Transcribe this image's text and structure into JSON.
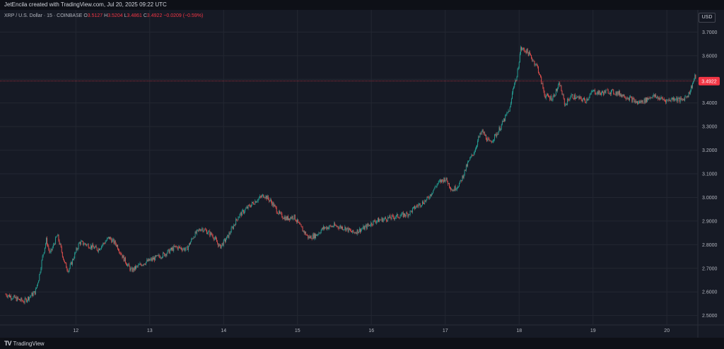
{
  "header": {
    "credit": "JetEncila created with TradingView.com, Jul 20, 2025 09:22 UTC",
    "symbol": "XRP / U.S. Dollar · 15 · COINBASE",
    "open_label": "O",
    "open_value": "3.5127",
    "high_label": "H",
    "high_value": "3.5204",
    "low_label": "L",
    "low_value": "3.4861",
    "close_label": "C",
    "close_value": "3.4922",
    "change": "−0.0209 (−0.59%)",
    "currency": "USD"
  },
  "footer": {
    "brand": "TradingView",
    "logo": "TV"
  },
  "colors": {
    "background": "#161a25",
    "up": "#26a69a",
    "down": "#ef5350",
    "price_line": "#f23645",
    "grid": "#232732"
  },
  "chart_data": {
    "type": "candlestick",
    "title": "XRP / U.S. Dollar · 15 · COINBASE",
    "interval": "15",
    "ylim": [
      2.46,
      3.74
    ],
    "xlim": [
      11.05,
      20.4
    ],
    "yticks": [
      "3.7000",
      "3.6000",
      "3.5000",
      "3.4000",
      "3.3000",
      "3.2000",
      "3.1000",
      "3.0000",
      "2.9000",
      "2.8000",
      "2.7000",
      "2.6000",
      "2.5000"
    ],
    "xticks": [
      "12",
      "13",
      "14",
      "15",
      "16",
      "17",
      "18",
      "19",
      "20"
    ],
    "last_price": "3.4922",
    "grid": true,
    "close_path": [
      [
        11.05,
        2.59
      ],
      [
        11.2,
        2.57
      ],
      [
        11.3,
        2.56
      ],
      [
        11.45,
        2.6
      ],
      [
        11.5,
        2.66
      ],
      [
        11.55,
        2.75
      ],
      [
        11.6,
        2.82
      ],
      [
        11.65,
        2.76
      ],
      [
        11.75,
        2.84
      ],
      [
        11.85,
        2.72
      ],
      [
        11.9,
        2.69
      ],
      [
        12.05,
        2.81
      ],
      [
        12.15,
        2.8
      ],
      [
        12.3,
        2.78
      ],
      [
        12.45,
        2.83
      ],
      [
        12.55,
        2.8
      ],
      [
        12.65,
        2.74
      ],
      [
        12.75,
        2.69
      ],
      [
        12.9,
        2.72
      ],
      [
        13.05,
        2.74
      ],
      [
        13.2,
        2.76
      ],
      [
        13.35,
        2.79
      ],
      [
        13.5,
        2.78
      ],
      [
        13.6,
        2.84
      ],
      [
        13.7,
        2.87
      ],
      [
        13.85,
        2.84
      ],
      [
        13.95,
        2.79
      ],
      [
        14.05,
        2.83
      ],
      [
        14.2,
        2.92
      ],
      [
        14.3,
        2.95
      ],
      [
        14.45,
        2.99
      ],
      [
        14.55,
        3.01
      ],
      [
        14.65,
        2.98
      ],
      [
        14.75,
        2.93
      ],
      [
        14.85,
        2.91
      ],
      [
        14.95,
        2.92
      ],
      [
        15.05,
        2.87
      ],
      [
        15.15,
        2.83
      ],
      [
        15.25,
        2.84
      ],
      [
        15.35,
        2.87
      ],
      [
        15.5,
        2.88
      ],
      [
        15.65,
        2.87
      ],
      [
        15.75,
        2.85
      ],
      [
        15.9,
        2.87
      ],
      [
        16.05,
        2.9
      ],
      [
        16.2,
        2.91
      ],
      [
        16.35,
        2.92
      ],
      [
        16.5,
        2.93
      ],
      [
        16.6,
        2.96
      ],
      [
        16.75,
        2.99
      ],
      [
        16.9,
        3.06
      ],
      [
        17.0,
        3.08
      ],
      [
        17.1,
        3.03
      ],
      [
        17.2,
        3.06
      ],
      [
        17.3,
        3.14
      ],
      [
        17.4,
        3.2
      ],
      [
        17.45,
        3.25
      ],
      [
        17.5,
        3.28
      ],
      [
        17.6,
        3.23
      ],
      [
        17.7,
        3.27
      ],
      [
        17.8,
        3.33
      ],
      [
        17.88,
        3.38
      ],
      [
        17.92,
        3.47
      ],
      [
        17.97,
        3.51
      ],
      [
        18.02,
        3.63
      ],
      [
        18.1,
        3.62
      ],
      [
        18.15,
        3.6
      ],
      [
        18.25,
        3.55
      ],
      [
        18.35,
        3.43
      ],
      [
        18.45,
        3.42
      ],
      [
        18.55,
        3.48
      ],
      [
        18.62,
        3.39
      ],
      [
        18.7,
        3.43
      ],
      [
        18.8,
        3.42
      ],
      [
        18.9,
        3.41
      ],
      [
        19.0,
        3.45
      ],
      [
        19.1,
        3.44
      ],
      [
        19.2,
        3.45
      ],
      [
        19.35,
        3.44
      ],
      [
        19.5,
        3.42
      ],
      [
        19.6,
        3.4
      ],
      [
        19.7,
        3.41
      ],
      [
        19.8,
        3.43
      ],
      [
        19.9,
        3.42
      ],
      [
        20.0,
        3.41
      ],
      [
        20.1,
        3.42
      ],
      [
        20.2,
        3.41
      ],
      [
        20.3,
        3.44
      ],
      [
        20.38,
        3.51
      ]
    ]
  }
}
